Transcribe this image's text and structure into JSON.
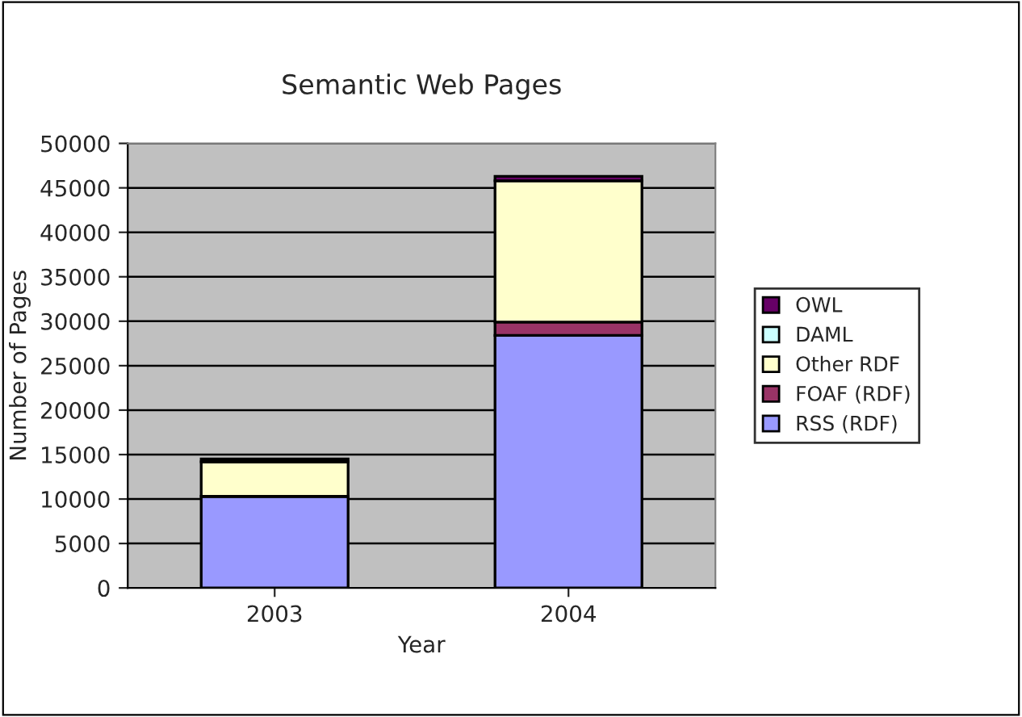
{
  "chart_data": {
    "type": "bar",
    "title": "Semantic Web Pages",
    "xlabel": "Year",
    "ylabel": "Number of Pages",
    "categories": [
      "2003",
      "2004"
    ],
    "stacked": true,
    "series": [
      {
        "name": "RSS (RDF)",
        "color": "#9999ff",
        "values": [
          10300,
          28400
        ]
      },
      {
        "name": "FOAF (RDF)",
        "color": "#993366",
        "values": [
          null,
          1500
        ]
      },
      {
        "name": "Other RDF",
        "color": "#ffffcc",
        "values": [
          3900,
          15900
        ]
      },
      {
        "name": "DAML",
        "color": "#ccffff",
        "values": [
          null,
          null
        ]
      },
      {
        "name": "OWL",
        "color": "#660066",
        "values": [
          300,
          500
        ]
      }
    ],
    "ylim": [
      0,
      50000
    ],
    "yticks": [
      0,
      5000,
      10000,
      15000,
      20000,
      25000,
      30000,
      35000,
      40000,
      45000,
      50000
    ],
    "grid": "y",
    "legend": "right"
  }
}
